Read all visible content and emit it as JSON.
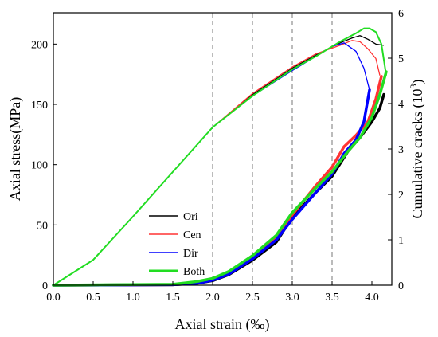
{
  "chart_data": {
    "type": "line",
    "xlabel": "Axial strain (‰)",
    "ylabel_left": "Axial stress(MPa)",
    "ylabel_right_prefix": "Cumulative cracks (10",
    "ylabel_right_exp": "3",
    "ylabel_right_suffix": ")",
    "xlim": [
      0.0,
      4.25
    ],
    "ylim_left": [
      0,
      226
    ],
    "ylim_right": [
      0,
      6
    ],
    "x_ticks": [
      0.0,
      0.5,
      1.0,
      1.5,
      2.0,
      2.5,
      3.0,
      3.5,
      4.0
    ],
    "x_tick_labels": [
      "0.0",
      "0.5",
      "1.0",
      "1.5",
      "2.0",
      "2.5",
      "3.0",
      "3.5",
      "4.0"
    ],
    "y_ticks_left": [
      0,
      50,
      100,
      150,
      200
    ],
    "y_tick_labels_left": [
      "0",
      "50",
      "100",
      "150",
      "200"
    ],
    "y_ticks_right": [
      0,
      1,
      2,
      3,
      4,
      5,
      6
    ],
    "y_tick_labels_right": [
      "0",
      "1",
      "2",
      "3",
      "4",
      "5",
      "6"
    ],
    "reference_lines_x": [
      2.0,
      2.5,
      3.0,
      3.5
    ],
    "legend_position": "lower-left",
    "stress_series": [
      {
        "name": "Ori",
        "color": "#000000",
        "x": [
          0,
          0.5,
          1.0,
          1.5,
          2.0,
          2.5,
          3.0,
          3.3,
          3.6,
          3.75,
          3.85,
          3.95,
          4.05,
          4.15
        ],
        "y": [
          0,
          21,
          57,
          94,
          131,
          158,
          180,
          191,
          201,
          205,
          207,
          204,
          200,
          199
        ]
      },
      {
        "name": "Cen",
        "color": "#ff3333",
        "x": [
          0,
          0.5,
          1.0,
          1.5,
          2.0,
          2.5,
          3.0,
          3.3,
          3.6,
          3.75,
          3.85,
          3.95,
          4.05,
          4.1
        ],
        "y": [
          0,
          21,
          57,
          94,
          131,
          159,
          181,
          192,
          199,
          203,
          202,
          196,
          188,
          174
        ]
      },
      {
        "name": "Dir",
        "color": "#0000ff",
        "x": [
          0,
          0.5,
          1.0,
          1.5,
          2.0,
          2.5,
          3.0,
          3.3,
          3.5,
          3.65,
          3.8,
          3.9,
          3.97
        ],
        "y": [
          0,
          21,
          57,
          94,
          131,
          157,
          178,
          190,
          198,
          201,
          194,
          180,
          162
        ]
      },
      {
        "name": "Both",
        "color": "#22dd22",
        "x": [
          0,
          0.5,
          1.0,
          1.5,
          2.0,
          2.5,
          3.0,
          3.3,
          3.6,
          3.8,
          3.9,
          3.97,
          4.05,
          4.12,
          4.18
        ],
        "y": [
          0,
          21,
          57,
          94,
          131,
          157,
          179,
          190,
          202,
          209,
          213,
          213,
          210,
          200,
          174
        ]
      }
    ],
    "crack_series": [
      {
        "name": "Ori",
        "color": "#000000",
        "x": [
          0,
          1.5,
          1.8,
          2.0,
          2.2,
          2.5,
          2.8,
          3.0,
          3.3,
          3.5,
          3.7,
          3.85,
          4.0,
          4.1,
          4.15
        ],
        "y": [
          0,
          0.01,
          0.04,
          0.1,
          0.23,
          0.55,
          0.95,
          1.5,
          2.05,
          2.4,
          2.95,
          3.25,
          3.6,
          3.9,
          4.2
        ]
      },
      {
        "name": "Cen",
        "color": "#ff3333",
        "x": [
          0,
          1.5,
          1.8,
          2.0,
          2.2,
          2.5,
          2.8,
          3.0,
          3.3,
          3.5,
          3.65,
          3.8,
          3.95,
          4.05,
          4.12
        ],
        "y": [
          0,
          0.01,
          0.05,
          0.12,
          0.26,
          0.6,
          1.05,
          1.55,
          2.2,
          2.6,
          3.05,
          3.3,
          3.6,
          4.1,
          4.6
        ]
      },
      {
        "name": "Dir",
        "color": "#0000ff",
        "x": [
          0,
          1.5,
          1.8,
          2.0,
          2.2,
          2.5,
          2.8,
          3.0,
          3.3,
          3.5,
          3.65,
          3.8,
          3.9,
          3.97
        ],
        "y": [
          0,
          0.01,
          0.04,
          0.11,
          0.24,
          0.58,
          1.0,
          1.45,
          2.05,
          2.45,
          2.9,
          3.2,
          3.6,
          4.3
        ]
      },
      {
        "name": "Both",
        "color": "#22dd22",
        "x": [
          0,
          1.5,
          1.8,
          2.0,
          2.2,
          2.5,
          2.8,
          3.0,
          3.3,
          3.5,
          3.7,
          3.85,
          4.0,
          4.1,
          4.18
        ],
        "y": [
          0,
          0.02,
          0.08,
          0.15,
          0.3,
          0.65,
          1.1,
          1.6,
          2.15,
          2.5,
          2.95,
          3.25,
          3.7,
          4.2,
          4.7
        ]
      }
    ]
  }
}
